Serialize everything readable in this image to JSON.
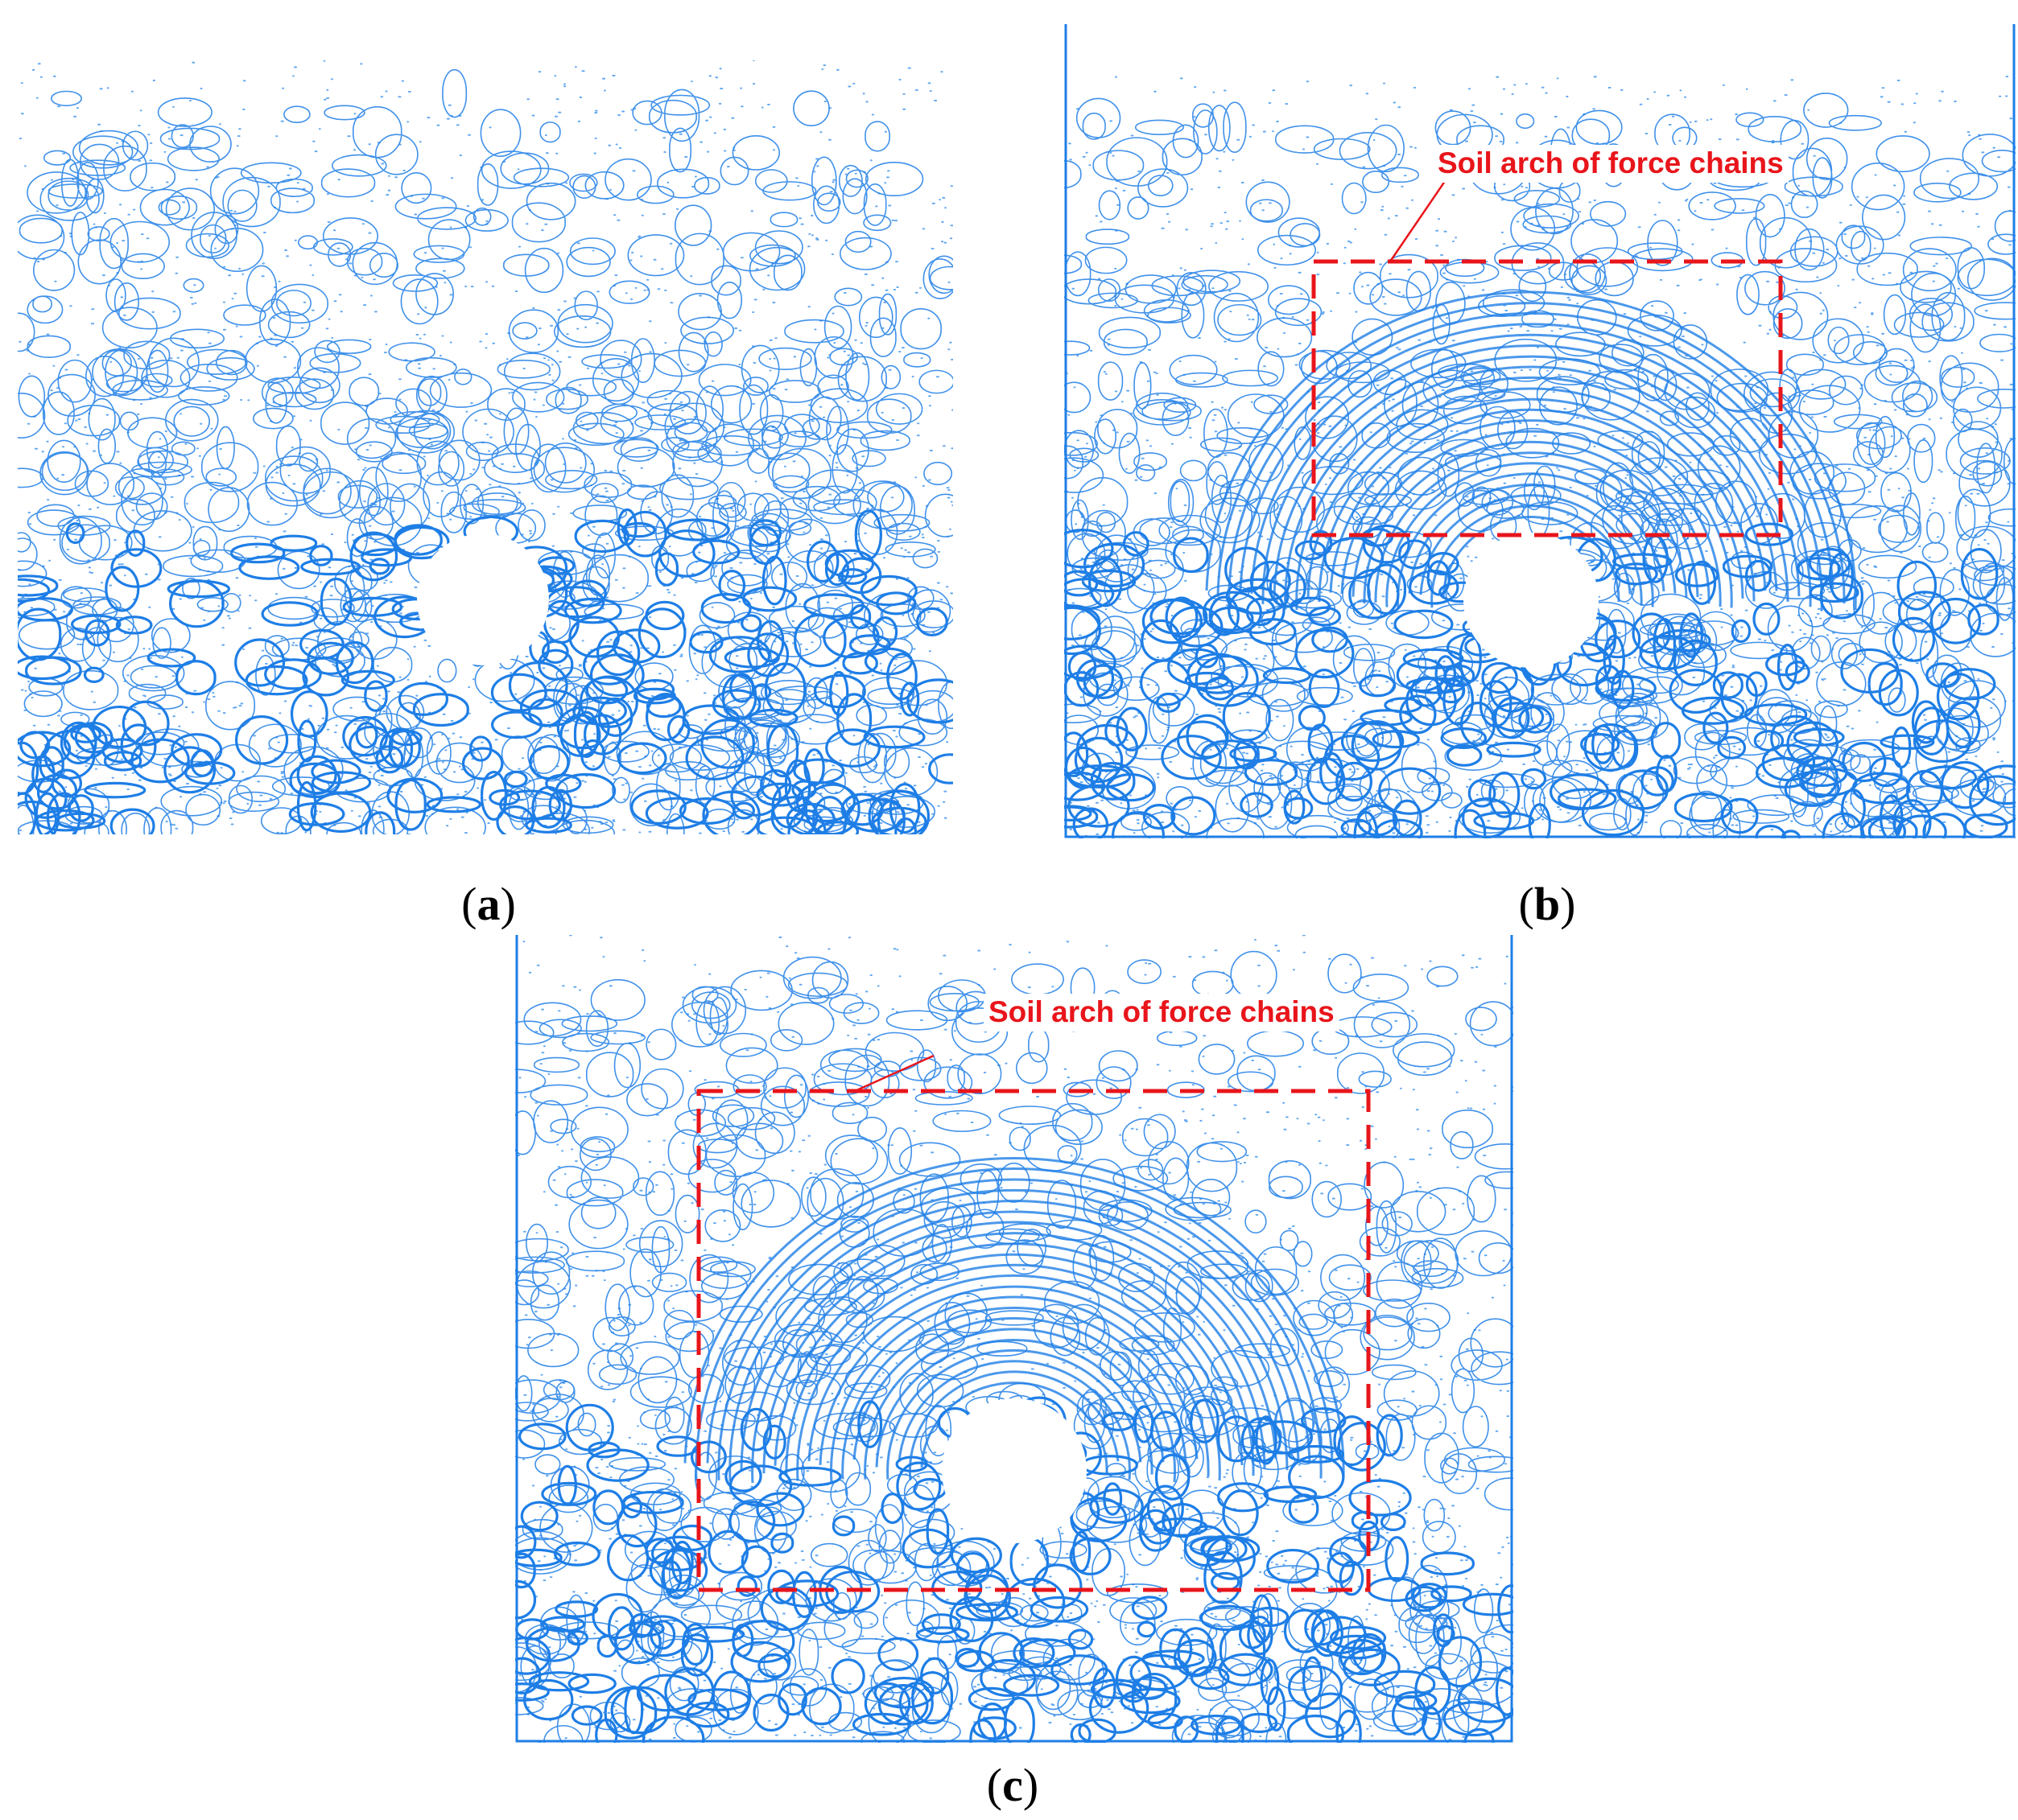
{
  "figure": {
    "colors": {
      "force_chain": "#1e7ee6",
      "force_chain_light": "#63a8f0",
      "annotation": "#e8151b",
      "wall": "#1e7ee6"
    },
    "panels": [
      {
        "id": "a",
        "caption_letter": "a",
        "has_walls": false,
        "has_annotation": false
      },
      {
        "id": "b",
        "caption_letter": "b",
        "has_walls": true,
        "has_annotation": true,
        "annotation_text": "Soil arch of force chains"
      },
      {
        "id": "c",
        "caption_letter": "c",
        "has_walls": true,
        "has_annotation": true,
        "annotation_text": "Soil arch of force chains"
      }
    ]
  }
}
